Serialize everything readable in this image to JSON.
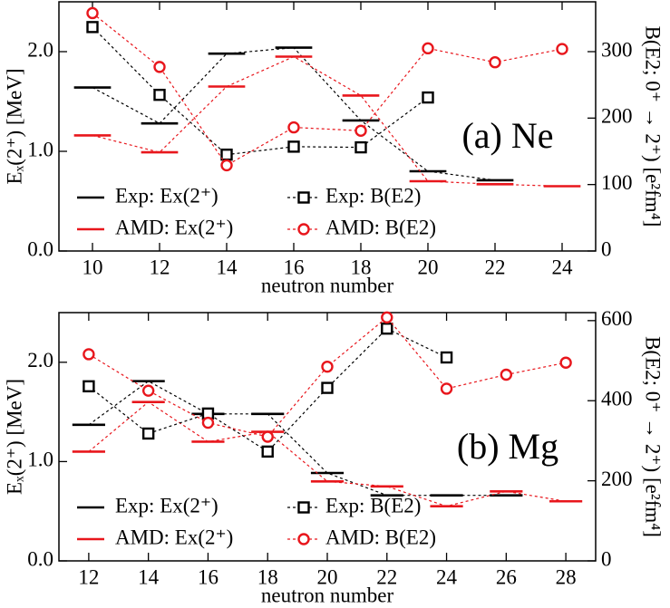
{
  "chart_data": [
    {
      "type": "line",
      "annotation": "(a) Ne",
      "xlabel": "neutron number",
      "ylabel": "Eₓ(2⁺) [MeV]",
      "y2label": "B(E2; 0⁺ → 2⁺) [e²fm⁴]",
      "x": [
        10,
        12,
        14,
        16,
        18,
        20,
        22,
        24
      ],
      "xlim": [
        9,
        25
      ],
      "xticks": [
        10,
        12,
        14,
        16,
        18,
        20,
        22,
        24
      ],
      "ylim": [
        0,
        2.5
      ],
      "yticks": [
        {
          "value": 0,
          "label": "0.0"
        },
        {
          "value": 1,
          "label": "1.0"
        },
        {
          "value": 2,
          "label": "2.0"
        }
      ],
      "y2lim": [
        0,
        375
      ],
      "y2ticks": [
        0,
        100,
        200,
        300
      ],
      "series": [
        {
          "name": "Exp: Ex(2⁺)",
          "color": "#000000",
          "marker": "level",
          "values": [
            1.64,
            1.28,
            1.98,
            2.04,
            1.31,
            0.8,
            0.71,
            null
          ]
        },
        {
          "name": "AMD: Ex(2⁺)",
          "color": "#e8161c",
          "marker": "level",
          "values": [
            1.16,
            0.99,
            1.65,
            1.95,
            1.56,
            0.7,
            0.67,
            0.65
          ]
        },
        {
          "name": "Exp: B(E2)",
          "color": "#000000",
          "marker": "square",
          "axis": "y2",
          "values": [
            337,
            235,
            145,
            157,
            156,
            231,
            null,
            null
          ]
        },
        {
          "name": "AMD: B(E2)",
          "color": "#e8161c",
          "marker": "circle",
          "axis": "y2",
          "values": [
            358,
            277,
            129,
            186,
            181,
            305,
            284,
            304
          ]
        }
      ]
    },
    {
      "type": "line",
      "annotation": "(b) Mg",
      "xlabel": "neutron number",
      "ylabel": "Eₓ(2⁺) [MeV]",
      "y2label": "B(E2; 0⁺ → 2⁺) [e²fm⁴]",
      "x": [
        12,
        14,
        16,
        18,
        20,
        22,
        24,
        26,
        28
      ],
      "xlim": [
        11,
        29
      ],
      "xticks": [
        12,
        14,
        16,
        18,
        20,
        22,
        24,
        26,
        28
      ],
      "ylim": [
        0,
        2.5
      ],
      "yticks": [
        {
          "value": 0,
          "label": "0.0"
        },
        {
          "value": 1,
          "label": "1.0"
        },
        {
          "value": 2,
          "label": "2.0"
        }
      ],
      "y2lim": [
        0,
        620
      ],
      "y2ticks": [
        0,
        200,
        400,
        600
      ],
      "series": [
        {
          "name": "Exp: Ex(2⁺)",
          "color": "#000000",
          "marker": "level",
          "values": [
            1.37,
            1.81,
            1.48,
            1.48,
            0.885,
            0.66,
            0.66,
            0.66,
            null
          ]
        },
        {
          "name": "AMD: Ex(2⁺)",
          "color": "#e8161c",
          "marker": "level",
          "values": [
            1.1,
            1.6,
            1.2,
            1.3,
            0.8,
            0.75,
            0.55,
            0.7,
            0.6
          ]
        },
        {
          "name": "Exp: B(E2)",
          "color": "#000000",
          "marker": "square",
          "axis": "y2",
          "values": [
            436,
            318,
            368,
            273,
            432,
            580,
            508,
            null,
            null
          ]
        },
        {
          "name": "AMD: B(E2)",
          "color": "#e8161c",
          "marker": "circle",
          "axis": "y2",
          "values": [
            516,
            425,
            345,
            310,
            485,
            608,
            430,
            465,
            495
          ]
        }
      ]
    }
  ]
}
